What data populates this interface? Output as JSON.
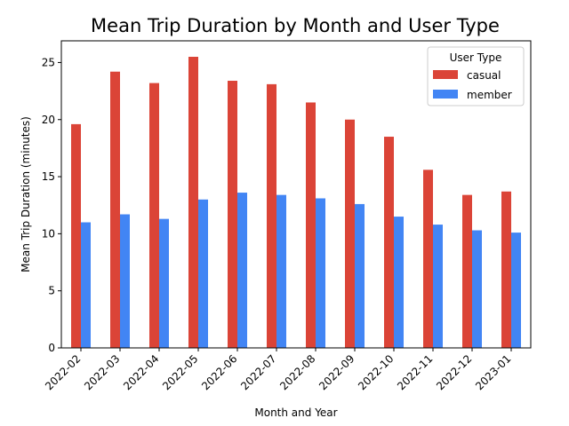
{
  "chart_data": {
    "type": "bar",
    "title": "Mean Trip Duration by Month and User Type",
    "xlabel": "Month and Year",
    "ylabel": "Mean Trip Duration (minutes)",
    "ylim": [
      0,
      26.9
    ],
    "yticks": [
      0,
      5,
      10,
      15,
      20,
      25
    ],
    "grid": false,
    "legend": {
      "title": "User Type",
      "placement": "top-right"
    },
    "categories": [
      "2022-02",
      "2022-03",
      "2022-04",
      "2022-05",
      "2022-06",
      "2022-07",
      "2022-08",
      "2022-09",
      "2022-10",
      "2022-11",
      "2022-12",
      "2023-01"
    ],
    "series": [
      {
        "name": "casual",
        "color": "#db4437",
        "values": [
          19.6,
          24.2,
          23.2,
          25.5,
          23.4,
          23.1,
          21.5,
          20.0,
          18.5,
          15.6,
          13.4,
          13.7
        ]
      },
      {
        "name": "member",
        "color": "#4285f4",
        "values": [
          11.0,
          11.7,
          11.3,
          13.0,
          13.6,
          13.4,
          13.1,
          12.6,
          11.5,
          10.8,
          10.3,
          10.1
        ]
      }
    ]
  }
}
